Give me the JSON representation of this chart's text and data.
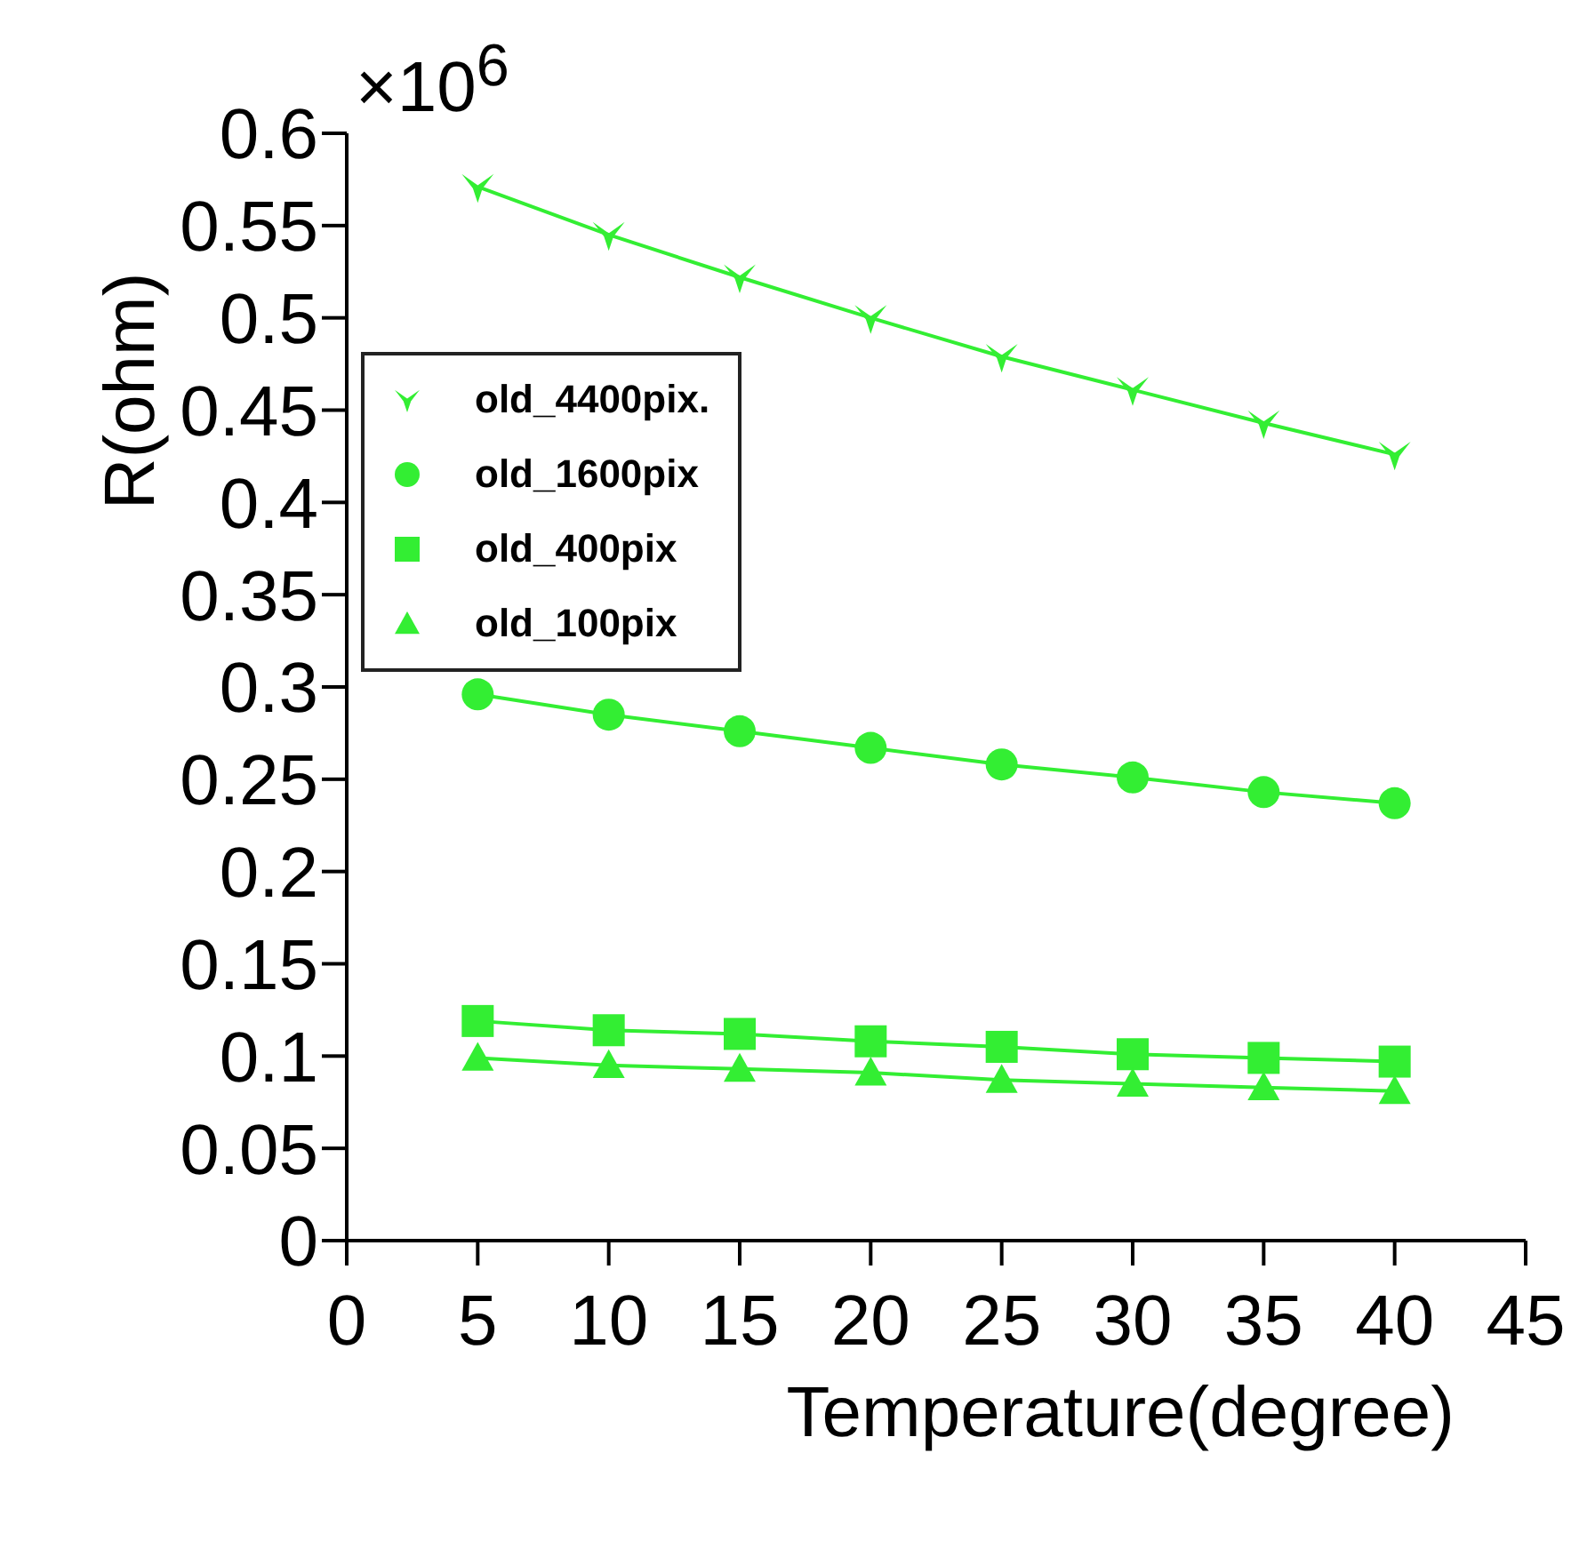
{
  "chart_data": {
    "type": "line",
    "xlabel": "Temperature(degree)",
    "ylabel": "R(ohm)",
    "annotations": [
      "×10$^{6}$"
    ],
    "x": [
      5,
      10,
      15,
      20,
      25,
      30,
      35,
      40
    ],
    "xlim": [
      0,
      45
    ],
    "xticks": [
      0,
      5,
      10,
      15,
      20,
      25,
      30,
      35,
      40,
      45
    ],
    "ylim": [
      0,
      0.6
    ],
    "yticks": [
      0,
      0.05,
      0.1,
      0.15,
      0.2,
      0.25,
      0.3,
      0.35,
      0.4,
      0.45,
      0.5,
      0.55,
      0.6
    ],
    "grid": false,
    "legend": "left",
    "series": [
      {
        "name": "old_4400pix.",
        "color": "#33ee33",
        "marker": "star",
        "values": [
          0.571,
          0.545,
          0.522,
          0.5,
          0.479,
          0.461,
          0.443,
          0.426
        ]
      },
      {
        "name": "old_1600pix",
        "color": "#33ee33",
        "marker": "circle",
        "values": [
          0.296,
          0.285,
          0.276,
          0.267,
          0.258,
          0.251,
          0.243,
          0.237
        ]
      },
      {
        "name": "old_400pix",
        "color": "#33ee33",
        "marker": "square",
        "values": [
          0.119,
          0.114,
          0.112,
          0.108,
          0.105,
          0.101,
          0.099,
          0.097
        ]
      },
      {
        "name": "old_100pix",
        "color": "#33ee33",
        "marker": "triangle",
        "values": [
          0.099,
          0.095,
          0.093,
          0.091,
          0.087,
          0.085,
          0.083,
          0.081
        ]
      }
    ]
  }
}
